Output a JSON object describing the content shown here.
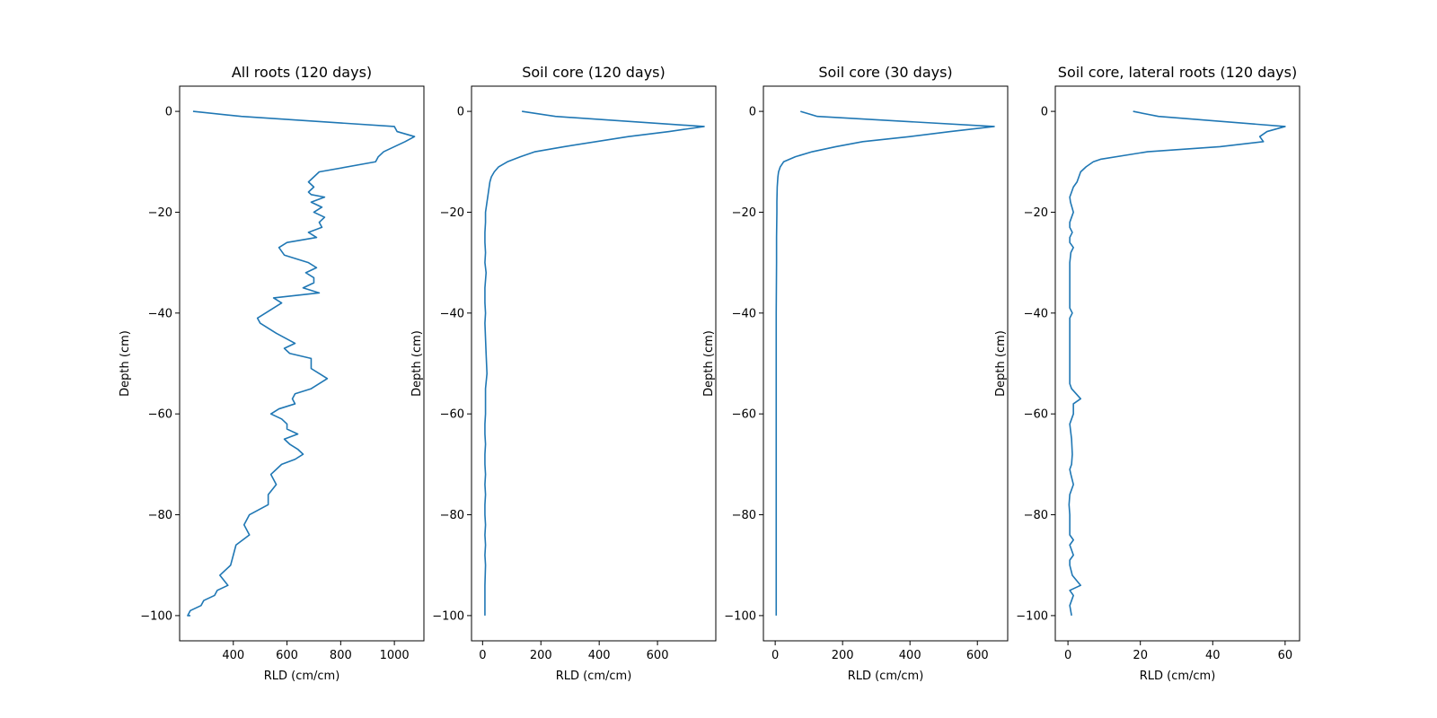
{
  "figure": {
    "line_color": "#1f77b4"
  },
  "chart_data": [
    {
      "type": "line",
      "title": "All roots (120 days)",
      "xlabel": "RLD (cm/cm)",
      "ylabel": "Depth (cm)",
      "xlim": [
        200,
        1110
      ],
      "ylim": [
        -105,
        5
      ],
      "xticks": [
        400,
        600,
        800,
        1000
      ],
      "yticks": [
        0,
        -20,
        -40,
        -60,
        -80,
        -100
      ],
      "grid": false,
      "series": [
        {
          "x": [
            250,
            430,
            1000,
            1010,
            1075,
            1040,
            1000,
            960,
            940,
            930,
            720,
            700,
            680,
            700,
            680,
            690,
            740,
            690,
            730,
            700,
            740,
            720,
            730,
            680,
            710,
            600,
            570,
            590,
            680,
            710,
            670,
            700,
            700,
            660,
            720,
            550,
            580,
            520,
            490,
            500,
            560,
            630,
            590,
            610,
            690,
            690,
            720,
            750,
            690,
            630,
            620,
            630,
            570,
            540,
            580,
            600,
            600,
            640,
            590,
            610,
            640,
            660,
            630,
            580,
            540,
            560,
            530,
            530,
            460,
            440,
            460,
            410,
            400,
            390,
            350,
            380,
            340,
            330,
            290,
            280,
            240,
            230,
            240
          ],
          "y": [
            0,
            -1,
            -3,
            -4,
            -5,
            -6,
            -7,
            -8,
            -9,
            -10,
            -12,
            -13,
            -14,
            -15,
            -16,
            -16.5,
            -17,
            -18,
            -19,
            -20,
            -21,
            -22,
            -23,
            -24,
            -25,
            -26,
            -27,
            -28.5,
            -30,
            -31,
            -32,
            -33,
            -34,
            -35,
            -36,
            -37,
            -38,
            -40,
            -41,
            -42,
            -44,
            -46,
            -47,
            -48,
            -49,
            -51,
            -52,
            -53,
            -55,
            -56,
            -57,
            -58,
            -59,
            -60,
            -61,
            -62,
            -63,
            -64,
            -65,
            -66,
            -67,
            -68,
            -69,
            -70,
            -72,
            -74,
            -76,
            -78,
            -80,
            -82,
            -84,
            -86,
            -88,
            -90,
            -92,
            -94,
            -95,
            -96,
            -97,
            -98,
            -99,
            -100,
            -100
          ]
        }
      ]
    },
    {
      "type": "line",
      "title": "Soil core (120 days)",
      "xlabel": "RLD (cm/cm)",
      "ylabel": "Depth (cm)",
      "xlim": [
        -38,
        800
      ],
      "ylim": [
        -105,
        5
      ],
      "xticks": [
        0,
        200,
        400,
        600
      ],
      "yticks": [
        0,
        -20,
        -40,
        -60,
        -80,
        -100
      ],
      "grid": false,
      "series": [
        {
          "x": [
            135,
            250,
            760,
            640,
            500,
            280,
            180,
            130,
            85,
            55,
            40,
            30,
            25,
            20,
            15,
            10,
            10,
            8,
            8,
            10,
            8,
            12,
            8,
            8,
            10,
            8,
            10,
            12,
            15,
            10,
            10,
            10,
            8,
            8,
            10,
            8,
            8,
            10,
            8,
            10,
            8,
            8,
            10,
            8,
            10,
            8,
            10,
            8,
            8
          ],
          "y": [
            0,
            -1,
            -3,
            -4,
            -5,
            -7,
            -8,
            -9,
            -10,
            -11,
            -12,
            -13,
            -14,
            -16,
            -18,
            -20,
            -22,
            -24,
            -26,
            -28,
            -30,
            -32,
            -35,
            -38,
            -40,
            -42,
            -45,
            -48,
            -52,
            -55,
            -58,
            -60,
            -62,
            -64,
            -66,
            -68,
            -70,
            -72,
            -74,
            -76,
            -78,
            -80,
            -82,
            -84,
            -86,
            -88,
            -90,
            -94,
            -100
          ]
        }
      ]
    },
    {
      "type": "line",
      "title": "Soil core (30 days)",
      "xlabel": "RLD (cm/cm)",
      "ylabel": "Depth (cm)",
      "xlim": [
        -35,
        690
      ],
      "ylim": [
        -105,
        5
      ],
      "xticks": [
        0,
        200,
        400,
        600
      ],
      "yticks": [
        0,
        -20,
        -40,
        -60,
        -80,
        -100
      ],
      "grid": false,
      "series": [
        {
          "x": [
            75,
            125,
            650,
            520,
            400,
            260,
            180,
            110,
            60,
            25,
            15,
            10,
            8,
            6,
            5,
            5,
            4,
            4,
            3,
            3,
            3,
            3,
            3,
            3
          ],
          "y": [
            0,
            -1,
            -3,
            -4,
            -5,
            -6,
            -7,
            -8,
            -9,
            -10,
            -11,
            -12,
            -13,
            -15,
            -18,
            -20,
            -25,
            -30,
            -40,
            -50,
            -60,
            -70,
            -80,
            -100
          ]
        }
      ]
    },
    {
      "type": "line",
      "title": "Soil core, lateral roots (120 days)",
      "xlabel": "RLD (cm/cm)",
      "ylabel": "Depth (cm)",
      "xlim": [
        -3.5,
        64
      ],
      "ylim": [
        -105,
        5
      ],
      "xticks": [
        0,
        20,
        40,
        60
      ],
      "yticks": [
        0,
        -20,
        -40,
        -60,
        -80,
        -100
      ],
      "grid": false,
      "series": [
        {
          "x": [
            18,
            25,
            60,
            55,
            53,
            54,
            42,
            22,
            9,
            7,
            5,
            3.5,
            2.5,
            1.5,
            0.5,
            0.7,
            1.5,
            1.0,
            0.5,
            0.5,
            1.2,
            0.5,
            0.5,
            1.5,
            0.8,
            0.5,
            0.5,
            0.5,
            0.5,
            1.2,
            0.5,
            0.5,
            0.5,
            0.5,
            0.5,
            1.0,
            3.5,
            1.5,
            1.5,
            0.5,
            1.0,
            1.2,
            1.0,
            0.5,
            0.8,
            1.5,
            0.5,
            0.3,
            0.5,
            0.5,
            0.5,
            1.5,
            0.5,
            1.5,
            0.5,
            0.5,
            1.2,
            3.5,
            0.5,
            1.5,
            0.5,
            1.0
          ],
          "y": [
            0,
            -1,
            -3,
            -4,
            -5,
            -6,
            -7,
            -8,
            -9.5,
            -10,
            -11,
            -12,
            -14,
            -15,
            -17,
            -18,
            -20,
            -21,
            -22,
            -23,
            -24,
            -25,
            -26,
            -27,
            -28,
            -30,
            -35,
            -38,
            -39,
            -40,
            -41,
            -45,
            -50,
            -53,
            -54,
            -55,
            -57,
            -58,
            -60,
            -62,
            -65,
            -68,
            -70,
            -71,
            -72,
            -74,
            -76,
            -78,
            -80,
            -82,
            -84,
            -85,
            -86,
            -88,
            -89,
            -90,
            -92,
            -94,
            -95,
            -96,
            -98,
            -100
          ]
        }
      ]
    }
  ]
}
